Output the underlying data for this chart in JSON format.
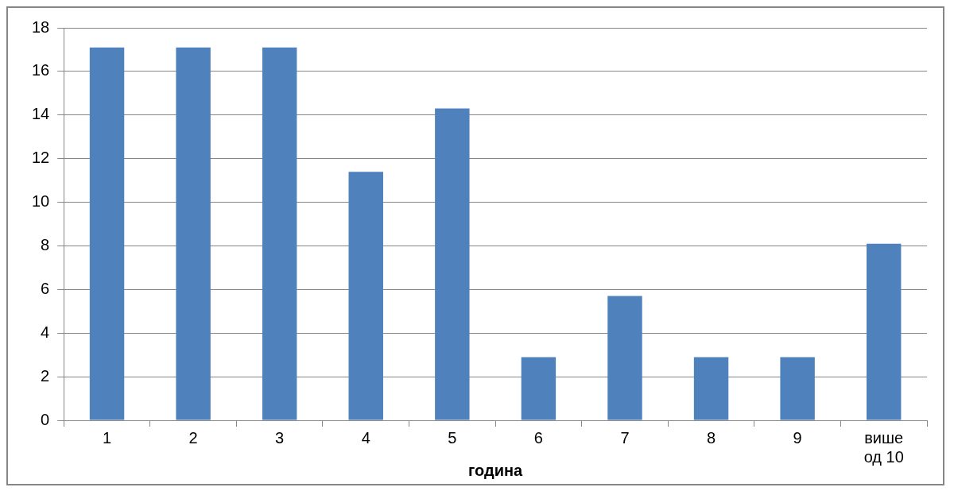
{
  "chart_data": {
    "type": "bar",
    "xlabel": "година",
    "categories": [
      "1",
      "2",
      "3",
      "4",
      "5",
      "6",
      "7",
      "8",
      "9",
      "више од 10"
    ],
    "values": [
      17.1,
      17.1,
      17.1,
      11.4,
      14.3,
      2.9,
      5.7,
      2.9,
      2.9,
      8.1
    ],
    "color": "#4f81bd",
    "ylim": [
      0,
      18
    ],
    "yticks": [
      0,
      2,
      4,
      6,
      8,
      10,
      12,
      14,
      16,
      18
    ],
    "grid": "y",
    "legend": false
  }
}
